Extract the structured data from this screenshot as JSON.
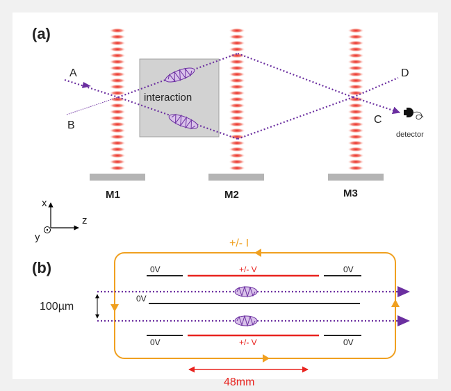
{
  "panel_a": {
    "label": "(a)",
    "port_a": "A",
    "port_b": "B",
    "port_c": "C",
    "port_d": "D",
    "interaction": "interaction",
    "detector": "detector",
    "mirrors": [
      "M1",
      "M2",
      "M3"
    ],
    "axes": {
      "x": "x",
      "y": "y",
      "z": "z"
    }
  },
  "panel_b": {
    "label": "(b)",
    "current": "+/- I",
    "voltage_top": "+/- V",
    "voltage_bottom": "+/- V",
    "zero_tl": "0V",
    "zero_tr": "0V",
    "zero_mid": "0V",
    "zero_bl": "0V",
    "zero_br": "0V",
    "spacing": "100µm",
    "length": "48mm"
  },
  "colors": {
    "beam": "#6b2fa0",
    "standing_wave": "#e8231f",
    "current": "#f0a020",
    "mirror": "#b4b4b4",
    "interaction_box": "#d2d2d2"
  }
}
